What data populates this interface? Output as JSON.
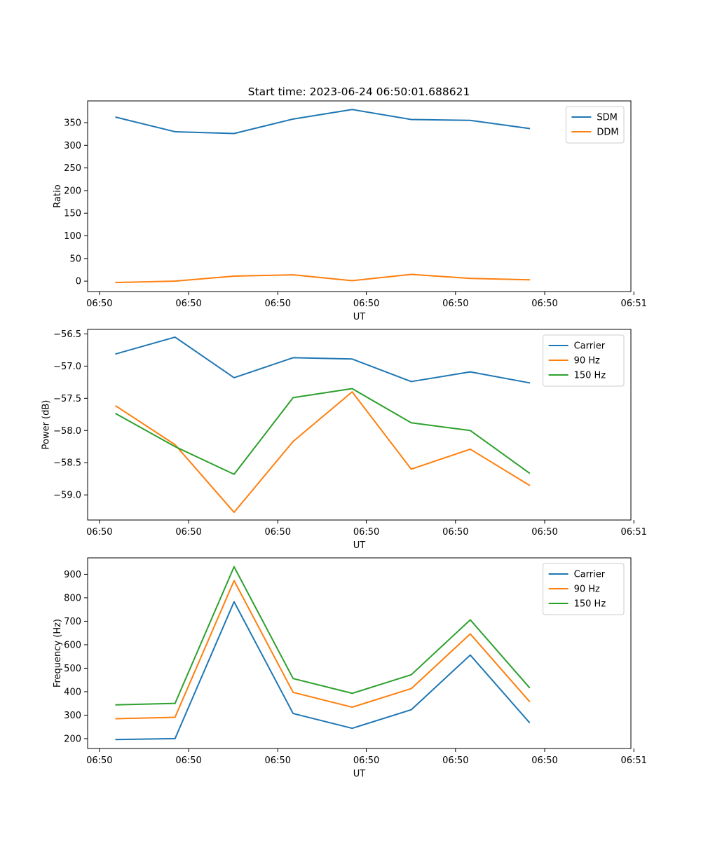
{
  "title": "Start time: 2023-06-24 06:50:01.688621",
  "chart_data": [
    {
      "type": "line",
      "title": "Start time: 2023-06-24 06:50:01.688621",
      "xlabel": "UT",
      "ylabel": "Ratio",
      "x": [
        0,
        1,
        2,
        3,
        4,
        5,
        6,
        7
      ],
      "xlim": [
        -0.48,
        8.72
      ],
      "xticks": [
        -0.28,
        1.23,
        2.74,
        4.24,
        5.75,
        7.26,
        8.77
      ],
      "xtick_labels": [
        "06:50",
        "06:50",
        "06:50",
        "06:50",
        "06:50",
        "06:50",
        "06:51"
      ],
      "ylim": [
        -23,
        398
      ],
      "yticks": [
        0,
        50,
        100,
        150,
        200,
        250,
        300,
        350
      ],
      "ytick_labels": [
        "0",
        "50",
        "100",
        "150",
        "200",
        "250",
        "300",
        "350"
      ],
      "grid": false,
      "legend": "upper right",
      "series": [
        {
          "name": "SDM",
          "color": "#1f77b4",
          "values": [
            362,
            330,
            326,
            358,
            379,
            357,
            355,
            337
          ]
        },
        {
          "name": "DDM",
          "color": "#ff7f0e",
          "values": [
            -3,
            0,
            11,
            14,
            1,
            15,
            6,
            3
          ]
        }
      ]
    },
    {
      "type": "line",
      "xlabel": "UT",
      "ylabel": "Power (dB)",
      "x": [
        0,
        1,
        2,
        3,
        4,
        5,
        6,
        7
      ],
      "xlim": [
        -0.48,
        8.72
      ],
      "xticks": [
        -0.28,
        1.23,
        2.74,
        4.24,
        5.75,
        7.26,
        8.77
      ],
      "xtick_labels": [
        "06:50",
        "06:50",
        "06:50",
        "06:50",
        "06:50",
        "06:50",
        "06:51"
      ],
      "ylim": [
        -59.39,
        -56.43
      ],
      "yticks": [
        -59.0,
        -58.5,
        -58.0,
        -57.5,
        -57.0,
        -56.5
      ],
      "ytick_labels": [
        "−59.0",
        "−58.5",
        "−58.0",
        "−57.5",
        "−57.0",
        "−56.5"
      ],
      "grid": false,
      "legend": "upper right",
      "series": [
        {
          "name": "Carrier",
          "color": "#1f77b4",
          "values": [
            -56.81,
            -56.55,
            -57.18,
            -56.87,
            -56.89,
            -57.24,
            -57.09,
            -57.26
          ]
        },
        {
          "name": "90 Hz",
          "color": "#ff7f0e",
          "values": [
            -57.62,
            -58.22,
            -59.27,
            -58.17,
            -57.4,
            -58.6,
            -58.29,
            -58.85
          ]
        },
        {
          "name": "150 Hz",
          "color": "#2ca02c",
          "values": [
            -57.74,
            -58.25,
            -58.68,
            -57.49,
            -57.35,
            -57.88,
            -58.0,
            -58.66
          ]
        }
      ]
    },
    {
      "type": "line",
      "xlabel": "UT",
      "ylabel": "Frequency (Hz)",
      "x": [
        0,
        1,
        2,
        3,
        4,
        5,
        6,
        7
      ],
      "xlim": [
        -0.48,
        8.72
      ],
      "xticks": [
        -0.28,
        1.23,
        2.74,
        4.24,
        5.75,
        7.26,
        8.77
      ],
      "xtick_labels": [
        "06:50",
        "06:50",
        "06:50",
        "06:50",
        "06:50",
        "06:50",
        "06:51"
      ],
      "ylim": [
        158,
        970
      ],
      "yticks": [
        200,
        300,
        400,
        500,
        600,
        700,
        800,
        900
      ],
      "ytick_labels": [
        "200",
        "300",
        "400",
        "500",
        "600",
        "700",
        "800",
        "900"
      ],
      "grid": false,
      "legend": "upper right",
      "series": [
        {
          "name": "Carrier",
          "color": "#1f77b4",
          "values": [
            196,
            200,
            783,
            307,
            244,
            323,
            556,
            269
          ]
        },
        {
          "name": "90 Hz",
          "color": "#ff7f0e",
          "values": [
            285,
            291,
            873,
            397,
            334,
            413,
            646,
            359
          ]
        },
        {
          "name": "150 Hz",
          "color": "#2ca02c",
          "values": [
            344,
            350,
            932,
            456,
            393,
            472,
            706,
            418
          ]
        }
      ]
    }
  ]
}
